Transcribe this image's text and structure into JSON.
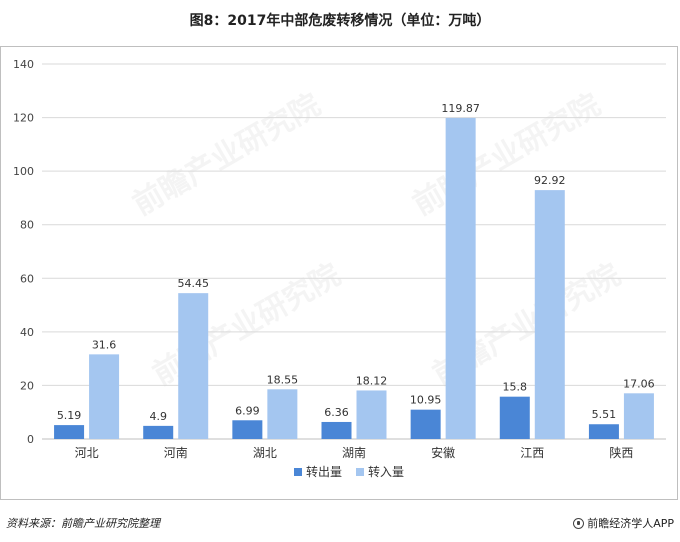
{
  "title": "图8：2017年中部危废转移情况（单位：万吨）",
  "source": "资料来源：前瞻产业研究院整理",
  "brand": "前瞻经济学人APP",
  "watermark": "前瞻产业研究院",
  "colors": {
    "out": "#4a86d6",
    "in": "#a4c6f0",
    "grid": "#d9d9d9"
  },
  "chart_data": {
    "type": "bar",
    "categories": [
      "河北",
      "河南",
      "湖北",
      "湖南",
      "安徽",
      "江西",
      "陕西"
    ],
    "series": [
      {
        "name": "转出量",
        "values": [
          5.19,
          4.9,
          6.99,
          6.36,
          10.95,
          15.8,
          5.51
        ]
      },
      {
        "name": "转入量",
        "values": [
          31.6,
          54.45,
          18.55,
          18.12,
          119.87,
          92.92,
          17.06
        ]
      }
    ],
    "ylim": [
      0,
      140
    ],
    "yticks": [
      0,
      20,
      40,
      60,
      80,
      100,
      120,
      140
    ],
    "grid": true,
    "legend": "bottom"
  }
}
